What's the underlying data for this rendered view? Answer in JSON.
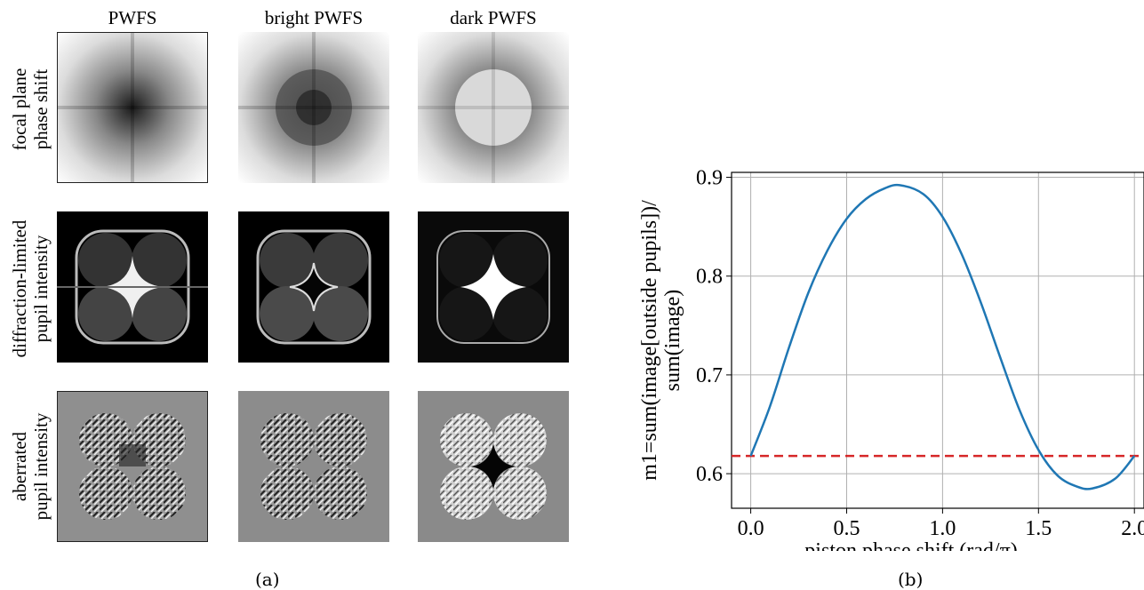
{
  "panel_a": {
    "column_titles": [
      "PWFS",
      "bright PWFS",
      "dark PWFS"
    ],
    "row_labels": [
      [
        "focal plane",
        "phase shift"
      ],
      [
        "diffraction-limited",
        "pupil intensity"
      ],
      [
        "aberrated",
        "pupil intensity"
      ]
    ],
    "caption": "(a)"
  },
  "panel_b": {
    "caption": "(b)"
  },
  "chart_data": {
    "type": "line",
    "xlabel": "piston phase shift (rad/π)",
    "ylabel_lines": [
      "m1=sum(image[outside pupils])/",
      "sum(image)"
    ],
    "xlim": [
      -0.1,
      2.05
    ],
    "ylim": [
      0.565,
      0.905
    ],
    "xticks": [
      0.0,
      0.5,
      1.0,
      1.5,
      2.0
    ],
    "xtick_labels": [
      "0.0",
      "0.5",
      "1.0",
      "1.5",
      "2.0"
    ],
    "yticks": [
      0.6,
      0.7,
      0.8,
      0.9
    ],
    "ytick_labels": [
      "0.6",
      "0.7",
      "0.8",
      "0.9"
    ],
    "grid": true,
    "series": [
      {
        "color": "#1f77b4",
        "x": [
          0.0,
          0.1,
          0.2,
          0.3,
          0.4,
          0.5,
          0.6,
          0.7,
          0.78,
          0.9,
          1.0,
          1.1,
          1.2,
          1.3,
          1.4,
          1.5,
          1.6,
          1.7,
          1.78,
          1.9,
          2.0
        ],
        "y": [
          0.618,
          0.668,
          0.728,
          0.783,
          0.826,
          0.858,
          0.878,
          0.889,
          0.892,
          0.883,
          0.86,
          0.822,
          0.773,
          0.718,
          0.665,
          0.624,
          0.598,
          0.587,
          0.585,
          0.595,
          0.618
        ]
      }
    ],
    "hlines": [
      {
        "y": 0.618,
        "color": "#d62728",
        "style": "dashed"
      }
    ]
  }
}
